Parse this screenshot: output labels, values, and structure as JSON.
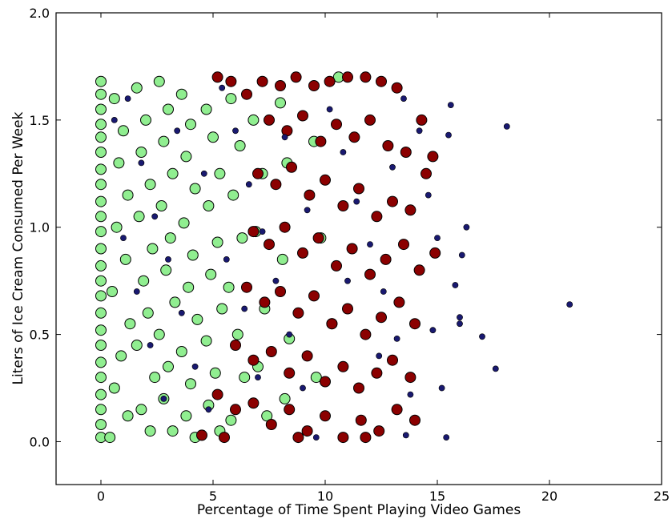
{
  "chart_data": {
    "type": "scatter",
    "xlabel": "Percentage of Time Spent Playing Video Games",
    "ylabel": "Liters of Ice Cream Consumed Per Week",
    "xlim": [
      -2,
      25
    ],
    "ylim": [
      -0.2,
      2.0
    ],
    "x_ticks": [
      "0",
      "5",
      "10",
      "15",
      "20",
      "25"
    ],
    "y_ticks": [
      "0.0",
      "0.5",
      "1.0",
      "1.5",
      "2.0"
    ],
    "x_tick_values": [
      0,
      5,
      10,
      15,
      20,
      25
    ],
    "y_tick_values": [
      0.0,
      0.5,
      1.0,
      1.5,
      2.0
    ],
    "grid": false,
    "legend": "none",
    "colors": {
      "light_green": "#90ee90",
      "dark_red": "#8b0000",
      "navy": "#191970",
      "edge": "#000000"
    },
    "series": [
      {
        "color": "#90ee90",
        "marker_size": "large",
        "values": [
          [
            0.0,
            1.68
          ],
          [
            0.0,
            1.62
          ],
          [
            0.0,
            1.55
          ],
          [
            0.0,
            1.48
          ],
          [
            0.0,
            1.42
          ],
          [
            0.0,
            1.35
          ],
          [
            0.0,
            1.27
          ],
          [
            0.0,
            1.2
          ],
          [
            0.0,
            1.12
          ],
          [
            0.0,
            1.05
          ],
          [
            0.0,
            0.98
          ],
          [
            0.0,
            0.9
          ],
          [
            0.0,
            0.82
          ],
          [
            0.0,
            0.75
          ],
          [
            0.0,
            0.68
          ],
          [
            0.0,
            0.6
          ],
          [
            0.0,
            0.52
          ],
          [
            0.0,
            0.45
          ],
          [
            0.0,
            0.37
          ],
          [
            0.0,
            0.3
          ],
          [
            0.0,
            0.22
          ],
          [
            0.0,
            0.15
          ],
          [
            0.0,
            0.08
          ],
          [
            0.0,
            0.02
          ],
          [
            0.6,
            1.6
          ],
          [
            1.0,
            1.45
          ],
          [
            0.8,
            1.3
          ],
          [
            1.2,
            1.15
          ],
          [
            0.7,
            1.0
          ],
          [
            1.1,
            0.85
          ],
          [
            0.5,
            0.7
          ],
          [
            1.3,
            0.55
          ],
          [
            0.9,
            0.4
          ],
          [
            0.6,
            0.25
          ],
          [
            1.2,
            0.12
          ],
          [
            0.4,
            0.02
          ],
          [
            1.6,
            1.65
          ],
          [
            2.0,
            1.5
          ],
          [
            1.8,
            1.35
          ],
          [
            2.2,
            1.2
          ],
          [
            1.7,
            1.05
          ],
          [
            2.3,
            0.9
          ],
          [
            1.9,
            0.75
          ],
          [
            2.1,
            0.6
          ],
          [
            1.6,
            0.45
          ],
          [
            2.4,
            0.3
          ],
          [
            1.8,
            0.15
          ],
          [
            2.2,
            0.05
          ],
          [
            2.6,
            1.68
          ],
          [
            3.0,
            1.55
          ],
          [
            2.8,
            1.4
          ],
          [
            3.2,
            1.25
          ],
          [
            2.7,
            1.1
          ],
          [
            3.1,
            0.95
          ],
          [
            2.9,
            0.8
          ],
          [
            3.3,
            0.65
          ],
          [
            2.6,
            0.5
          ],
          [
            3.0,
            0.35
          ],
          [
            2.8,
            0.2
          ],
          [
            3.2,
            0.05
          ],
          [
            3.6,
            1.62
          ],
          [
            4.0,
            1.48
          ],
          [
            3.8,
            1.33
          ],
          [
            4.2,
            1.18
          ],
          [
            3.7,
            1.02
          ],
          [
            4.1,
            0.87
          ],
          [
            3.9,
            0.72
          ],
          [
            4.3,
            0.57
          ],
          [
            3.6,
            0.42
          ],
          [
            4.0,
            0.27
          ],
          [
            3.8,
            0.12
          ],
          [
            4.2,
            0.02
          ],
          [
            4.7,
            1.55
          ],
          [
            5.0,
            1.42
          ],
          [
            5.3,
            1.25
          ],
          [
            4.8,
            1.1
          ],
          [
            5.2,
            0.93
          ],
          [
            4.9,
            0.78
          ],
          [
            5.4,
            0.62
          ],
          [
            4.7,
            0.47
          ],
          [
            5.1,
            0.32
          ],
          [
            4.8,
            0.17
          ],
          [
            5.3,
            0.05
          ],
          [
            5.8,
            1.6
          ],
          [
            6.2,
            1.38
          ],
          [
            5.9,
            1.15
          ],
          [
            6.3,
            0.95
          ],
          [
            5.7,
            0.72
          ],
          [
            6.1,
            0.5
          ],
          [
            6.4,
            0.3
          ],
          [
            5.8,
            0.1
          ],
          [
            6.8,
            1.5
          ],
          [
            7.2,
            1.25
          ],
          [
            6.9,
            0.98
          ],
          [
            7.3,
            0.62
          ],
          [
            7.0,
            0.35
          ],
          [
            7.4,
            0.12
          ],
          [
            8.0,
            1.58
          ],
          [
            8.3,
            1.3
          ],
          [
            8.1,
            0.85
          ],
          [
            8.4,
            0.48
          ],
          [
            8.2,
            0.2
          ],
          [
            9.5,
            1.4
          ],
          [
            9.8,
            0.95
          ],
          [
            9.6,
            0.3
          ],
          [
            10.6,
            1.7
          ],
          [
            10.3,
            0.55
          ]
        ]
      },
      {
        "color": "#8b0000",
        "marker_size": "large",
        "values": [
          [
            5.2,
            1.7
          ],
          [
            5.8,
            1.68
          ],
          [
            6.5,
            1.62
          ],
          [
            7.2,
            1.68
          ],
          [
            8.0,
            1.66
          ],
          [
            8.7,
            1.7
          ],
          [
            9.5,
            1.66
          ],
          [
            10.2,
            1.68
          ],
          [
            11.0,
            1.7
          ],
          [
            11.8,
            1.7
          ],
          [
            12.5,
            1.68
          ],
          [
            13.2,
            1.65
          ],
          [
            7.5,
            1.5
          ],
          [
            8.3,
            1.45
          ],
          [
            9.0,
            1.52
          ],
          [
            9.8,
            1.4
          ],
          [
            10.5,
            1.48
          ],
          [
            11.3,
            1.42
          ],
          [
            12.0,
            1.5
          ],
          [
            12.8,
            1.38
          ],
          [
            13.6,
            1.35
          ],
          [
            14.3,
            1.5
          ],
          [
            14.8,
            1.33
          ],
          [
            7.0,
            1.25
          ],
          [
            7.8,
            1.2
          ],
          [
            8.5,
            1.28
          ],
          [
            9.3,
            1.15
          ],
          [
            10.0,
            1.22
          ],
          [
            10.8,
            1.1
          ],
          [
            11.5,
            1.18
          ],
          [
            12.3,
            1.05
          ],
          [
            13.0,
            1.12
          ],
          [
            13.8,
            1.08
          ],
          [
            14.5,
            1.25
          ],
          [
            6.8,
            0.98
          ],
          [
            7.5,
            0.92
          ],
          [
            8.2,
            1.0
          ],
          [
            9.0,
            0.88
          ],
          [
            9.7,
            0.95
          ],
          [
            10.5,
            0.82
          ],
          [
            11.2,
            0.9
          ],
          [
            12.0,
            0.78
          ],
          [
            12.7,
            0.85
          ],
          [
            13.5,
            0.92
          ],
          [
            14.2,
            0.8
          ],
          [
            14.9,
            0.88
          ],
          [
            6.5,
            0.72
          ],
          [
            7.3,
            0.65
          ],
          [
            8.0,
            0.7
          ],
          [
            8.8,
            0.6
          ],
          [
            9.5,
            0.68
          ],
          [
            10.3,
            0.55
          ],
          [
            11.0,
            0.62
          ],
          [
            11.8,
            0.5
          ],
          [
            12.5,
            0.58
          ],
          [
            13.3,
            0.65
          ],
          [
            14.0,
            0.55
          ],
          [
            6.0,
            0.45
          ],
          [
            6.8,
            0.38
          ],
          [
            7.6,
            0.42
          ],
          [
            8.4,
            0.32
          ],
          [
            9.2,
            0.4
          ],
          [
            10.0,
            0.28
          ],
          [
            10.8,
            0.35
          ],
          [
            11.5,
            0.25
          ],
          [
            12.3,
            0.32
          ],
          [
            13.0,
            0.38
          ],
          [
            13.8,
            0.3
          ],
          [
            5.2,
            0.22
          ],
          [
            6.0,
            0.15
          ],
          [
            6.8,
            0.18
          ],
          [
            7.6,
            0.08
          ],
          [
            8.4,
            0.15
          ],
          [
            9.2,
            0.05
          ],
          [
            10.0,
            0.12
          ],
          [
            10.8,
            0.02
          ],
          [
            11.6,
            0.1
          ],
          [
            12.4,
            0.05
          ],
          [
            13.2,
            0.15
          ],
          [
            14.0,
            0.1
          ],
          [
            4.5,
            0.03
          ],
          [
            5.5,
            0.02
          ],
          [
            8.8,
            0.02
          ],
          [
            11.8,
            0.02
          ]
        ]
      },
      {
        "color": "#191970",
        "marker_size": "small",
        "values": [
          [
            0.6,
            1.5
          ],
          [
            1.2,
            1.6
          ],
          [
            1.8,
            1.3
          ],
          [
            2.4,
            1.05
          ],
          [
            3.0,
            0.85
          ],
          [
            3.6,
            0.6
          ],
          [
            4.2,
            0.35
          ],
          [
            4.8,
            0.15
          ],
          [
            1.0,
            0.95
          ],
          [
            1.6,
            0.7
          ],
          [
            2.2,
            0.45
          ],
          [
            2.8,
            0.2
          ],
          [
            5.4,
            1.65
          ],
          [
            6.0,
            1.45
          ],
          [
            6.6,
            1.2
          ],
          [
            7.2,
            0.98
          ],
          [
            7.8,
            0.75
          ],
          [
            8.4,
            0.5
          ],
          [
            9.0,
            0.25
          ],
          [
            9.6,
            0.02
          ],
          [
            10.2,
            1.55
          ],
          [
            10.8,
            1.35
          ],
          [
            11.4,
            1.12
          ],
          [
            12.0,
            0.92
          ],
          [
            12.6,
            0.7
          ],
          [
            13.2,
            0.48
          ],
          [
            13.8,
            0.22
          ],
          [
            13.5,
            1.6
          ],
          [
            14.2,
            1.45
          ],
          [
            14.6,
            1.15
          ],
          [
            15.0,
            0.95
          ],
          [
            14.8,
            0.52
          ],
          [
            15.2,
            0.25
          ],
          [
            13.6,
            0.03
          ],
          [
            15.4,
            0.02
          ],
          [
            15.6,
            1.57
          ],
          [
            15.8,
            0.73
          ],
          [
            16.0,
            0.55
          ],
          [
            16.1,
            0.87
          ],
          [
            16.3,
            1.0
          ],
          [
            17.0,
            0.49
          ],
          [
            17.6,
            0.34
          ],
          [
            18.1,
            1.47
          ],
          [
            20.9,
            0.64
          ],
          [
            15.5,
            1.43
          ],
          [
            16.0,
            0.58
          ],
          [
            3.4,
            1.45
          ],
          [
            4.6,
            1.25
          ],
          [
            5.6,
            0.85
          ],
          [
            6.4,
            0.62
          ],
          [
            7.0,
            0.3
          ],
          [
            8.2,
            1.42
          ],
          [
            9.2,
            1.08
          ],
          [
            11.0,
            0.75
          ],
          [
            12.4,
            0.4
          ],
          [
            13.0,
            1.28
          ]
        ]
      }
    ]
  }
}
